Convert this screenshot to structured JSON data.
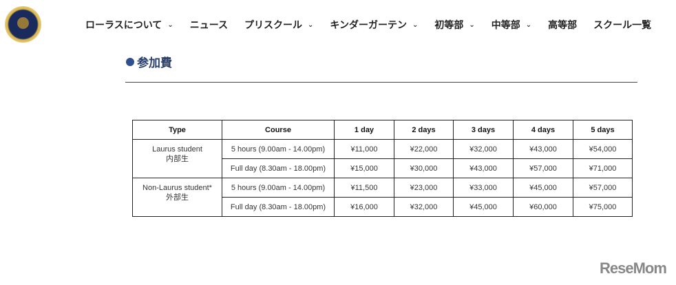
{
  "nav": {
    "items": [
      {
        "label": "ローラスについて",
        "dropdown": true
      },
      {
        "label": "ニュース",
        "dropdown": false
      },
      {
        "label": "プリスクール",
        "dropdown": true
      },
      {
        "label": "キンダーガーテン",
        "dropdown": true
      },
      {
        "label": "初等部",
        "dropdown": true
      },
      {
        "label": "中等部",
        "dropdown": true
      },
      {
        "label": "高等部",
        "dropdown": false
      },
      {
        "label": "スクール一覧",
        "dropdown": false
      }
    ]
  },
  "section": {
    "title": "参加費"
  },
  "table": {
    "headers": [
      "Type",
      "Course",
      "1 day",
      "2 days",
      "3 days",
      "4 days",
      "5 days"
    ],
    "groups": [
      {
        "type": "Laurus student",
        "type_ja": "内部生",
        "rows": [
          {
            "course": "5 hours (9.00am - 14.00pm)",
            "prices": [
              "¥11,000",
              "¥22,000",
              "¥32,000",
              "¥43,000",
              "¥54,000"
            ]
          },
          {
            "course": "Full day (8.30am - 18.00pm)",
            "prices": [
              "¥15,000",
              "¥30,000",
              "¥43,000",
              "¥57,000",
              "¥71,000"
            ]
          }
        ]
      },
      {
        "type": "Non-Laurus student*",
        "type_ja": "外部生",
        "rows": [
          {
            "course": "5 hours (9.00am - 14.00pm)",
            "prices": [
              "¥11,500",
              "¥23,000",
              "¥33,000",
              "¥45,000",
              "¥57,000"
            ]
          },
          {
            "course": "Full day (8.30am - 18.00pm)",
            "prices": [
              "¥16,000",
              "¥32,000",
              "¥45,000",
              "¥60,000",
              "¥75,000"
            ]
          }
        ]
      }
    ]
  },
  "watermark": "ReseMom",
  "colors": {
    "heading": "#2b3f6b",
    "dot": "#2f4f8f"
  }
}
